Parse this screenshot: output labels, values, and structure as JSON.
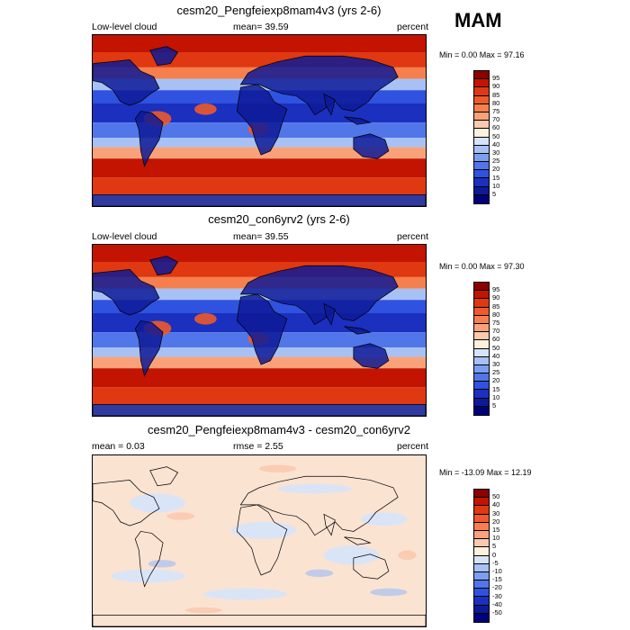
{
  "season": "MAM",
  "panels": [
    {
      "title": "cesm20_Pengfeiexp8mam4v3 (yrs 2-6)",
      "left_label": "Low-level cloud",
      "mid_label": "mean=  39.59",
      "right_label": "percent",
      "minmax": "Min =   0.00 Max =  97.16",
      "levels": [
        "95",
        "90",
        "85",
        "80",
        "75",
        "70",
        "60",
        "50",
        "40",
        "30",
        "25",
        "20",
        "15",
        "10",
        "5"
      ],
      "colors": [
        "#8c0000",
        "#c21400",
        "#e03810",
        "#ee5a2a",
        "#f57f4d",
        "#f9a27a",
        "#fbc9ae",
        "#fdf0dc",
        "#d6e3fb",
        "#a7c1f4",
        "#7b9ef0",
        "#5176ea",
        "#2f52e0",
        "#1b30bf",
        "#0d1a96",
        "#00007a"
      ],
      "colormap": "cloud"
    },
    {
      "title": "cesm20_con6yrv2 (yrs 2-6)",
      "left_label": "Low-level cloud",
      "mid_label": "mean=  39.55",
      "right_label": "percent",
      "minmax": "Min =   0.00 Max =  97.30",
      "levels": [
        "95",
        "90",
        "85",
        "80",
        "75",
        "70",
        "60",
        "50",
        "40",
        "30",
        "25",
        "20",
        "15",
        "10",
        "5"
      ],
      "colors": [
        "#8c0000",
        "#c21400",
        "#e03810",
        "#ee5a2a",
        "#f57f4d",
        "#f9a27a",
        "#fbc9ae",
        "#fdf0dc",
        "#d6e3fb",
        "#a7c1f4",
        "#7b9ef0",
        "#5176ea",
        "#2f52e0",
        "#1b30bf",
        "#0d1a96",
        "#00007a"
      ],
      "colormap": "cloud"
    },
    {
      "title": "cesm20_Pengfeiexp8mam4v3 - cesm20_con6yrv2",
      "left_label": "mean =   0.03",
      "mid_label": "rmse =   2.55",
      "right_label": "percent",
      "minmax": "Min = -13.09 Max =  12.19",
      "levels": [
        "50",
        "40",
        "30",
        "20",
        "15",
        "10",
        "5",
        "0",
        "-5",
        "-10",
        "-15",
        "-20",
        "-30",
        "-40",
        "-50"
      ],
      "colors": [
        "#8c0000",
        "#c21400",
        "#e03810",
        "#ee5a2a",
        "#f57f4d",
        "#f9a27a",
        "#fbc9ae",
        "#fdf0dc",
        "#d6e3fb",
        "#a7c1f4",
        "#7b9ef0",
        "#5176ea",
        "#2f52e0",
        "#1b30bf",
        "#0d1a96",
        "#00007a"
      ],
      "colormap": "diff"
    }
  ]
}
